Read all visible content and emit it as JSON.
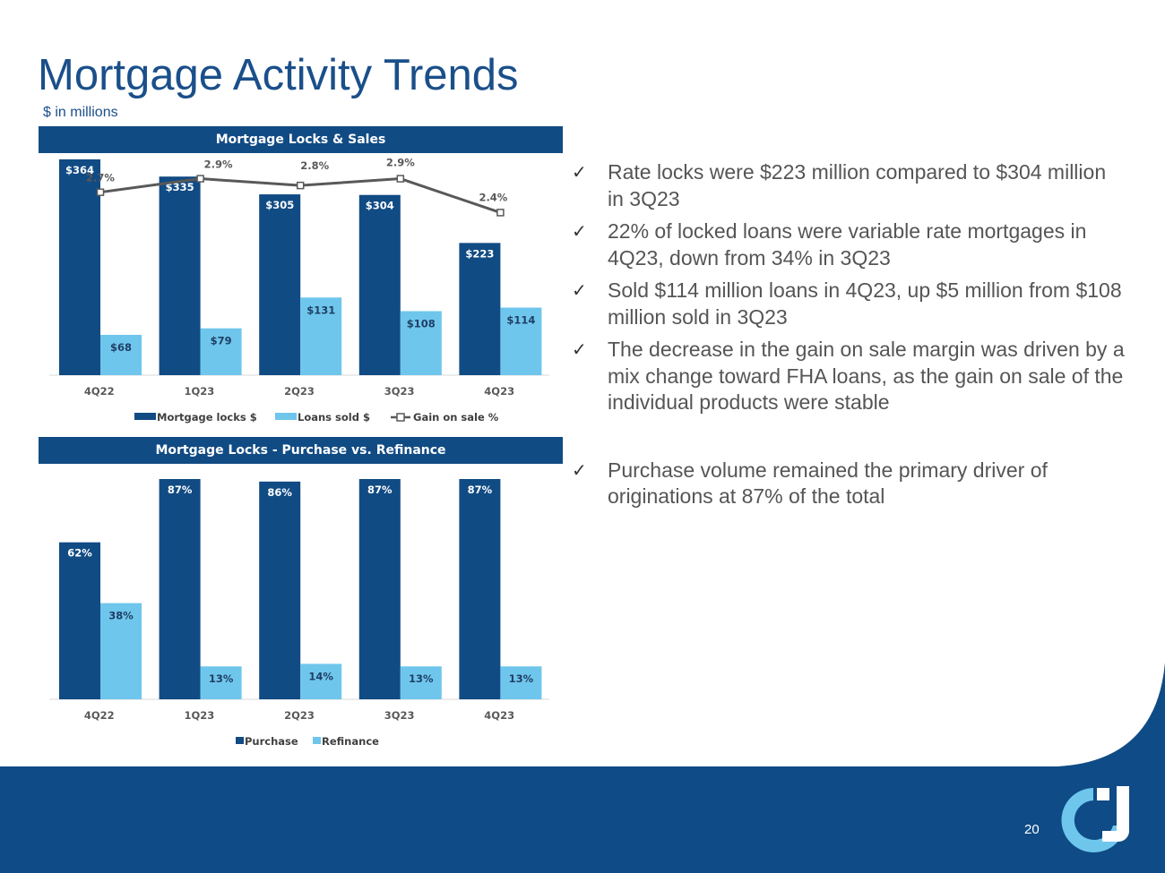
{
  "title": "Mortgage Activity Trends",
  "subtitle": "$ in millions",
  "page_number": "20",
  "colors": {
    "dark_blue": "#114b84",
    "light_blue": "#6fc6ec",
    "line": "#595959",
    "footer": "#0f4b86"
  },
  "logo_icon": "company-logo",
  "bullets": [
    {
      "check": "✓",
      "text": "Rate locks were $223 million compared to $304 million in 3Q23"
    },
    {
      "check": "✓",
      "text": "22% of locked loans were variable rate mortgages in 4Q23, down from 34% in 3Q23"
    },
    {
      "check": "✓",
      "text": "Sold $114 million loans in 4Q23, up $5 million from $108 million sold in 3Q23"
    },
    {
      "check": "✓",
      "text": "The decrease in the gain on sale margin was driven by a mix change toward FHA loans, as the gain on sale of the individual products were stable"
    },
    {
      "check": "✓",
      "text": "Purchase volume remained the primary driver of originations at 87% of the total"
    }
  ],
  "chart_data": [
    {
      "type": "bar",
      "title": "Mortgage Locks & Sales",
      "categories": [
        "4Q22",
        "1Q23",
        "2Q23",
        "3Q23",
        "4Q23"
      ],
      "series": [
        {
          "name": "Mortgage locks $",
          "kind": "bar",
          "color": "#114b84",
          "values": [
            364,
            335,
            305,
            304,
            223
          ],
          "labels": [
            "$364",
            "$335",
            "$305",
            "$304",
            "$223"
          ]
        },
        {
          "name": "Loans sold $",
          "kind": "bar",
          "color": "#6fc6ec",
          "values": [
            68,
            79,
            131,
            108,
            114
          ],
          "labels": [
            "$68",
            "$79",
            "$131",
            "$108",
            "$114"
          ]
        },
        {
          "name": "Gain on sale %",
          "kind": "line",
          "color": "#595959",
          "values": [
            2.7,
            2.9,
            2.8,
            2.9,
            2.4
          ],
          "labels": [
            "2.7%",
            "2.9%",
            "2.8%",
            "2.9%",
            "2.4%"
          ]
        }
      ],
      "ylim": [
        0,
        400
      ],
      "y2lim": [
        0,
        3.5
      ],
      "legend": "bottom",
      "grid": false
    },
    {
      "type": "bar",
      "title": "Mortgage Locks - Purchase vs. Refinance",
      "categories": [
        "4Q22",
        "1Q23",
        "2Q23",
        "3Q23",
        "4Q23"
      ],
      "series": [
        {
          "name": "Purchase",
          "kind": "bar",
          "color": "#114b84",
          "values": [
            62,
            87,
            86,
            87,
            87
          ],
          "labels": [
            "62%",
            "87%",
            "86%",
            "87%",
            "87%"
          ]
        },
        {
          "name": "Refinance",
          "kind": "bar",
          "color": "#6fc6ec",
          "values": [
            38,
            13,
            14,
            13,
            13
          ],
          "labels": [
            "38%",
            "13%",
            "14%",
            "13%",
            "13%"
          ]
        }
      ],
      "ylim": [
        0,
        100
      ],
      "legend": "bottom",
      "grid": false
    }
  ]
}
